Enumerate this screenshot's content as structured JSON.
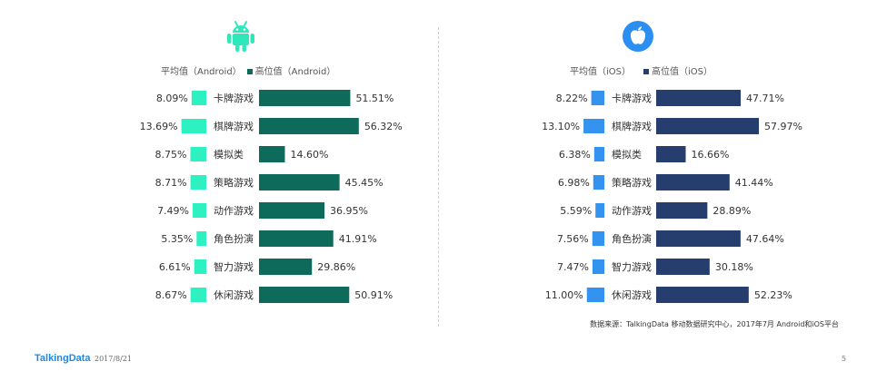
{
  "colors": {
    "android_avg": "#2ef1c1",
    "android_high": "#0e6b5c",
    "ios_avg": "#3393ee",
    "ios_high": "#263e6e",
    "android_icon": "#2ee8bb",
    "ios_icon": "#2a8ff0"
  },
  "legend": {
    "android_avg": "平均值（Android）",
    "android_high": "高位值（Android）",
    "ios_avg": "平均值（iOS）",
    "ios_high": "高位值（iOS）"
  },
  "icons": {
    "android": "android-robot-icon",
    "ios": "apple-icon"
  },
  "chart_data": [
    {
      "type": "bar",
      "categories": [
        "卡牌游戏",
        "棋牌游戏",
        "模拟类",
        "策略游戏",
        "动作游戏",
        "角色扮演",
        "智力游戏",
        "休闲游戏"
      ],
      "series": [
        {
          "name": "平均值（Android）",
          "values": [
            8.09,
            13.69,
            8.75,
            8.71,
            7.49,
            5.35,
            6.61,
            8.67
          ],
          "labels": [
            "8.09%",
            "13.69%",
            "8.75%",
            "8.71%",
            "7.49%",
            "5.35%",
            "6.61%",
            "8.67%"
          ]
        },
        {
          "name": "高位值（Android）",
          "values": [
            51.51,
            56.32,
            14.6,
            45.45,
            36.95,
            41.91,
            29.86,
            50.91
          ],
          "labels": [
            "51.51%",
            "56.32%",
            "14.60%",
            "45.45%",
            "36.95%",
            "41.91%",
            "29.86%",
            "50.91%"
          ]
        }
      ]
    },
    {
      "type": "bar",
      "categories": [
        "卡牌游戏",
        "棋牌游戏",
        "模拟类",
        "策略游戏",
        "动作游戏",
        "角色扮演",
        "智力游戏",
        "休闲游戏"
      ],
      "series": [
        {
          "name": "平均值（iOS）",
          "values": [
            8.22,
            13.1,
            6.38,
            6.98,
            5.59,
            7.56,
            7.47,
            11.0
          ],
          "labels": [
            "8.22%",
            "13.10%",
            "6.38%",
            "6.98%",
            "5.59%",
            "7.56%",
            "7.47%",
            "11.00%"
          ]
        },
        {
          "name": "高位值（iOS）",
          "values": [
            47.71,
            57.97,
            16.66,
            41.44,
            28.89,
            47.64,
            30.18,
            52.23
          ],
          "labels": [
            "47.71%",
            "57.97%",
            "16.66%",
            "41.44%",
            "28.89%",
            "47.64%",
            "30.18%",
            "52.23%"
          ]
        }
      ]
    }
  ],
  "source": "数据来源：TalkingData 移动数据研究中心，2017年7月 Android和iOS平台",
  "footer": {
    "brand": "TalkingData",
    "date": "2017/8/21",
    "page": "5"
  }
}
